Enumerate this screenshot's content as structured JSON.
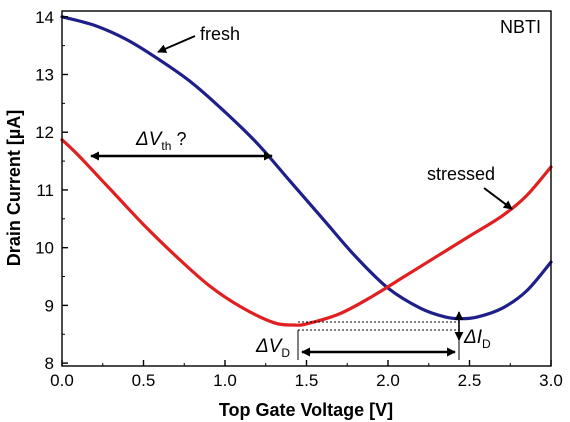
{
  "chart_data": {
    "type": "line",
    "xlabel": "Top Gate Voltage [V]",
    "ylabel": "Drain Current [µA]",
    "xlim": [
      0.0,
      3.0
    ],
    "ylim": [
      7.95,
      14.1
    ],
    "xticks": [
      "0.0",
      "0.5",
      "1.0",
      "1.5",
      "2.0",
      "2.5",
      "3.0"
    ],
    "yticks": [
      "8",
      "9",
      "10",
      "11",
      "12",
      "13",
      "14"
    ],
    "grid": false,
    "series": [
      {
        "name": "fresh",
        "color": "#1f1f8a",
        "x": [
          0.0,
          0.2,
          0.4,
          0.6,
          0.8,
          1.0,
          1.2,
          1.4,
          1.6,
          1.8,
          2.0,
          2.2,
          2.35,
          2.45,
          2.55,
          2.7,
          2.85,
          3.0
        ],
        "y": [
          14.0,
          13.85,
          13.6,
          13.25,
          12.85,
          12.35,
          11.8,
          11.15,
          10.5,
          9.85,
          9.3,
          8.95,
          8.8,
          8.77,
          8.8,
          8.95,
          9.25,
          9.75
        ]
      },
      {
        "name": "stressed",
        "color": "#e02020",
        "x": [
          0.0,
          0.1,
          0.3,
          0.5,
          0.7,
          0.9,
          1.1,
          1.3,
          1.42,
          1.5,
          1.7,
          1.9,
          2.1,
          2.3,
          2.5,
          2.7,
          2.85,
          3.0
        ],
        "y": [
          11.87,
          11.6,
          11.0,
          10.4,
          9.85,
          9.35,
          8.97,
          8.7,
          8.66,
          8.68,
          8.85,
          9.15,
          9.5,
          9.85,
          10.2,
          10.55,
          10.9,
          11.4
        ]
      }
    ],
    "annotations": {
      "corner_label": "NBTI",
      "fresh_label": "fresh",
      "stressed_label": "stressed",
      "delta_vth_main": "ΔV",
      "delta_vth_sub": "th",
      "delta_vth_suffix": " ?",
      "delta_vd_main": "ΔV",
      "delta_vd_sub": "D",
      "delta_id_main": "ΔI",
      "delta_id_sub": "D"
    },
    "colors": {
      "fresh": "#1f1f8a",
      "stressed": "#e02020",
      "axis": "#000000"
    }
  }
}
